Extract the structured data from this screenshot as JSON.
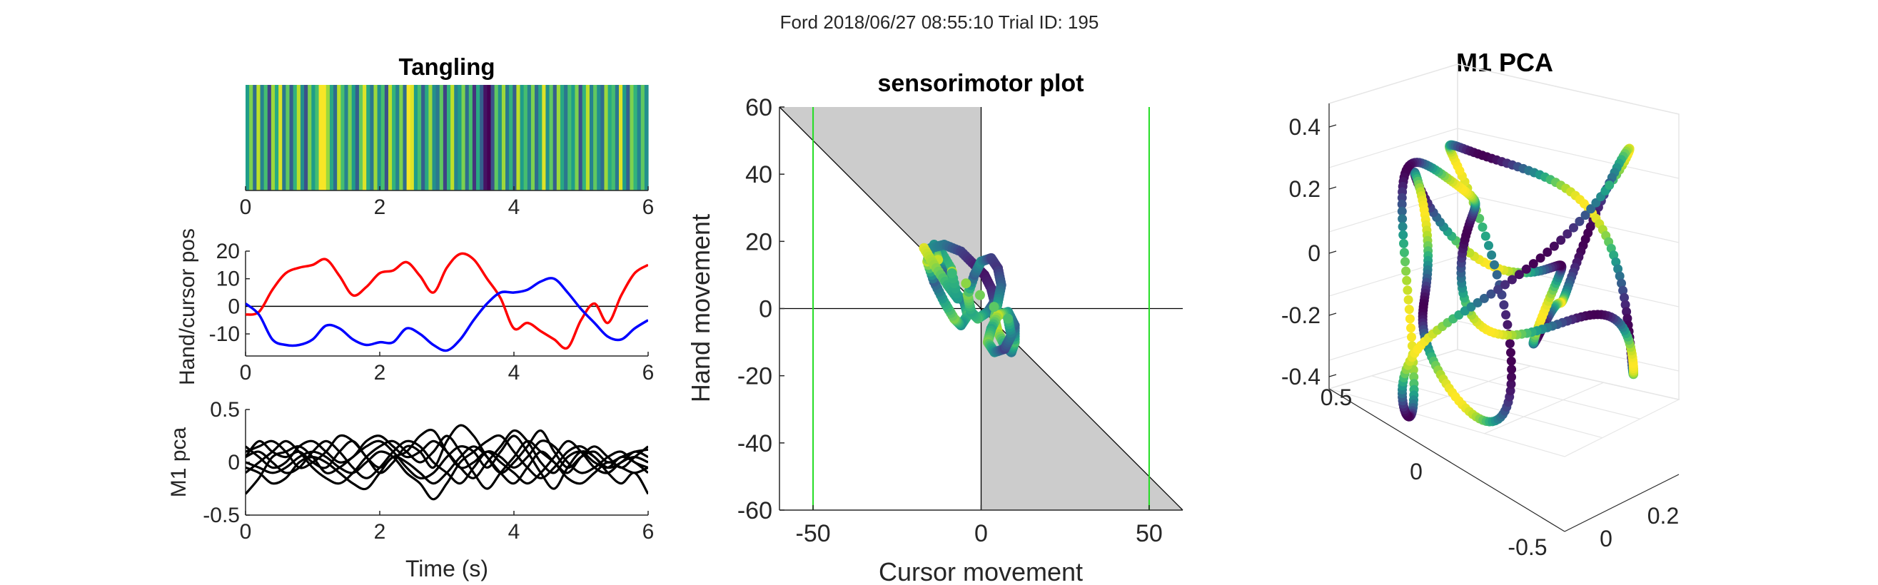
{
  "figure_title": "Ford 2018/06/27 08:55:10 Trial ID: 195",
  "chart_data": [
    {
      "id": "tangling",
      "type": "heatmap",
      "title": "Tangling",
      "xlabel": "",
      "ylabel": "",
      "xlim": [
        0,
        6
      ],
      "xticks": [
        "0",
        "2",
        "4",
        "6"
      ],
      "colormap": "viridis",
      "values": [
        0.55,
        0.8,
        0.35,
        0.9,
        0.45,
        0.7,
        0.2,
        0.85,
        0.6,
        0.95,
        0.4,
        0.75,
        0.3,
        0.65,
        0.9,
        0.5,
        0.25,
        0.8,
        0.55,
        0.7,
        0.99,
        0.99,
        0.85,
        0.6,
        0.35,
        0.9,
        0.7,
        0.45,
        0.8,
        0.55,
        0.3,
        0.75,
        0.95,
        0.6,
        0.4,
        0.85,
        0.5,
        0.7,
        0.25,
        0.9,
        0.65,
        0.45,
        0.8,
        0.35,
        0.99,
        0.95,
        0.55,
        0.7,
        0.3,
        0.6,
        0.85,
        0.5,
        0.4,
        0.75,
        0.2,
        0.65,
        0.9,
        0.45,
        0.55,
        0.8,
        0.35,
        0.7,
        0.15,
        0.6,
        0.3,
        0.05,
        0.0,
        0.25,
        0.75,
        0.5,
        0.85,
        0.4,
        0.65,
        0.3,
        0.9,
        0.55,
        0.7,
        0.45,
        0.8,
        0.35,
        0.6,
        0.95,
        0.5,
        0.75,
        0.3,
        0.85,
        0.6,
        0.4,
        0.7,
        0.55,
        0.8,
        0.25,
        0.65,
        0.9,
        0.45,
        0.75,
        0.5,
        0.35,
        0.85,
        0.6,
        0.7,
        0.4,
        0.95,
        0.55,
        0.3,
        0.8,
        0.65,
        0.45,
        0.75,
        0.5
      ]
    },
    {
      "id": "handcursor",
      "type": "line",
      "title": "",
      "xlabel": "",
      "ylabel": "Hand/cursor pos",
      "xlim": [
        0,
        6
      ],
      "ylim": [
        -18,
        20
      ],
      "xticks": [
        "0",
        "2",
        "4",
        "6"
      ],
      "yticks": [
        "-10",
        "0",
        "10",
        "20"
      ],
      "x": [
        0,
        0.2,
        0.4,
        0.6,
        0.8,
        1.0,
        1.2,
        1.4,
        1.6,
        1.8,
        2.0,
        2.2,
        2.4,
        2.6,
        2.8,
        3.0,
        3.2,
        3.4,
        3.6,
        3.8,
        4.0,
        4.2,
        4.4,
        4.6,
        4.8,
        5.0,
        5.2,
        5.4,
        5.6,
        5.8,
        6.0
      ],
      "series": [
        {
          "color": "#ff0000",
          "values": [
            -3,
            -2,
            6,
            12,
            14,
            15,
            17,
            11,
            4,
            7,
            12,
            13,
            16,
            11,
            5,
            14,
            19,
            17,
            10,
            3,
            -8,
            -6,
            -9,
            -12,
            -15,
            -5,
            1,
            -6,
            4,
            12,
            15
          ]
        },
        {
          "color": "#0000ff",
          "values": [
            1,
            -3,
            -12,
            -14,
            -14,
            -12,
            -7,
            -8,
            -12,
            -14,
            -13,
            -13,
            -8,
            -10,
            -14,
            -16,
            -12,
            -5,
            1,
            5,
            5,
            6,
            9,
            10,
            5,
            -1,
            -6,
            -11,
            -12,
            -8,
            -5
          ]
        }
      ],
      "reference_line": 0
    },
    {
      "id": "m1pca_time",
      "type": "line",
      "title": "",
      "xlabel": "Time (s)",
      "ylabel": "M1 pca",
      "xlim": [
        0,
        6
      ],
      "ylim": [
        -0.5,
        0.5
      ],
      "xticks": [
        "0",
        "2",
        "4",
        "6"
      ],
      "yticks": [
        "-0.5",
        "0",
        "0.5"
      ],
      "x": [
        0,
        0.2,
        0.4,
        0.6,
        0.8,
        1.0,
        1.2,
        1.4,
        1.6,
        1.8,
        2.0,
        2.2,
        2.4,
        2.6,
        2.8,
        3.0,
        3.2,
        3.4,
        3.6,
        3.8,
        4.0,
        4.2,
        4.4,
        4.6,
        4.8,
        5.0,
        5.2,
        5.4,
        5.6,
        5.8,
        6.0
      ],
      "series": [
        {
          "color": "#000000",
          "values": [
            0.1,
            0.15,
            0.2,
            0.1,
            -0.05,
            0.0,
            0.1,
            0.25,
            0.2,
            0.05,
            -0.1,
            0.0,
            0.15,
            0.1,
            -0.05,
            0.2,
            0.35,
            0.25,
            0.05,
            -0.1,
            0.0,
            0.15,
            0.3,
            0.1,
            -0.05,
            0.05,
            0.1,
            0.0,
            0.05,
            0.1,
            0.12
          ]
        },
        {
          "color": "#000000",
          "values": [
            -0.3,
            -0.15,
            0.05,
            0.1,
            0.15,
            0.05,
            -0.1,
            -0.05,
            0.05,
            0.15,
            0.2,
            0.1,
            -0.05,
            -0.15,
            -0.1,
            0.05,
            0.15,
            0.1,
            -0.05,
            0.1,
            0.25,
            0.1,
            -0.1,
            -0.25,
            -0.05,
            0.1,
            0.05,
            -0.1,
            -0.2,
            -0.1,
            -0.3
          ]
        },
        {
          "color": "#000000",
          "values": [
            0.0,
            -0.05,
            -0.1,
            -0.05,
            0.05,
            0.1,
            0.05,
            -0.05,
            -0.1,
            0.0,
            0.1,
            0.05,
            -0.1,
            -0.2,
            -0.35,
            -0.2,
            0.0,
            0.1,
            0.2,
            0.25,
            0.1,
            -0.05,
            -0.15,
            -0.05,
            0.1,
            0.15,
            0.05,
            -0.05,
            0.0,
            0.1,
            0.05
          ]
        },
        {
          "color": "#000000",
          "values": [
            0.05,
            0.1,
            0.0,
            -0.1,
            -0.05,
            0.1,
            0.2,
            0.1,
            -0.05,
            -0.15,
            -0.05,
            0.1,
            0.2,
            0.15,
            0.0,
            -0.1,
            -0.2,
            -0.05,
            0.1,
            0.05,
            -0.05,
            0.05,
            0.2,
            0.15,
            0.0,
            -0.1,
            -0.05,
            0.05,
            0.1,
            0.0,
            -0.05
          ]
        },
        {
          "color": "#000000",
          "values": [
            -0.1,
            0.0,
            0.1,
            0.2,
            0.1,
            -0.05,
            -0.15,
            -0.2,
            -0.1,
            0.05,
            0.15,
            0.2,
            0.1,
            0.0,
            0.1,
            0.25,
            0.1,
            -0.1,
            -0.25,
            -0.1,
            0.05,
            0.2,
            0.1,
            0.0,
            -0.1,
            0.05,
            0.15,
            0.05,
            -0.05,
            0.05,
            0.15
          ]
        },
        {
          "color": "#000000",
          "values": [
            0.15,
            0.05,
            -0.05,
            0.0,
            0.15,
            0.2,
            0.1,
            0.0,
            0.05,
            0.2,
            0.25,
            0.15,
            0.05,
            0.1,
            0.2,
            0.1,
            -0.05,
            -0.15,
            0.0,
            0.15,
            0.3,
            0.2,
            0.0,
            -0.1,
            0.05,
            0.1,
            0.0,
            -0.05,
            0.05,
            0.0,
            -0.1
          ]
        },
        {
          "color": "#000000",
          "values": [
            -0.05,
            -0.1,
            -0.2,
            -0.15,
            0.0,
            0.05,
            0.0,
            -0.1,
            -0.2,
            -0.25,
            -0.1,
            0.05,
            0.0,
            -0.1,
            -0.2,
            -0.1,
            0.05,
            0.15,
            0.05,
            -0.1,
            -0.2,
            -0.05,
            0.1,
            0.0,
            -0.15,
            -0.2,
            -0.1,
            0.0,
            -0.05,
            -0.1,
            -0.05
          ]
        },
        {
          "color": "#000000",
          "values": [
            0.05,
            0.2,
            0.1,
            0.05,
            0.1,
            0.0,
            -0.05,
            0.1,
            0.2,
            0.05,
            -0.05,
            0.05,
            0.1,
            0.25,
            0.3,
            0.1,
            -0.05,
            0.0,
            0.1,
            0.0,
            -0.1,
            -0.2,
            -0.1,
            0.05,
            0.2,
            0.1,
            -0.05,
            -0.1,
            0.0,
            0.05,
            0.0
          ]
        }
      ]
    },
    {
      "id": "sensorimotor",
      "type": "scatter",
      "title": "sensorimotor plot",
      "xlabel": "Cursor movement",
      "ylabel": "Hand movement",
      "xlim": [
        -60,
        60
      ],
      "ylim": [
        -60,
        60
      ],
      "xticks": [
        "-50",
        "0",
        "50"
      ],
      "yticks": [
        "-60",
        "-40",
        "-20",
        "0",
        "20",
        "40",
        "60"
      ],
      "vertical_lines": [
        -50,
        50
      ],
      "colormap": "viridis",
      "points": [
        [
          -9,
          12,
          0.7
        ],
        [
          -12,
          17,
          0.6
        ],
        [
          -14,
          19,
          0.5
        ],
        [
          -13,
          15,
          0.8
        ],
        [
          -11,
          10,
          0.3
        ],
        [
          -8,
          5,
          0.9
        ],
        [
          -5,
          2,
          0.4
        ],
        [
          -4,
          -2,
          0.7
        ],
        [
          -6,
          -5,
          0.5
        ],
        [
          -8,
          -3,
          0.8
        ],
        [
          -11,
          2,
          0.6
        ],
        [
          -14,
          8,
          0.3
        ],
        [
          -16,
          14,
          0.9
        ],
        [
          -15,
          18,
          0.5
        ],
        [
          -11,
          19,
          0.4
        ],
        [
          -6,
          17,
          0.2
        ],
        [
          -2,
          13,
          0.1
        ],
        [
          1,
          10,
          0.05
        ],
        [
          3,
          6,
          0.1
        ],
        [
          4,
          2,
          0.2
        ],
        [
          2,
          -1,
          0.4
        ],
        [
          -1,
          -3,
          0.7
        ],
        [
          -3,
          -1,
          0.6
        ],
        [
          -4,
          4,
          0.8
        ],
        [
          -2,
          10,
          0.3
        ],
        [
          0,
          14,
          0.5
        ],
        [
          3,
          15,
          0.2
        ],
        [
          5,
          12,
          0.15
        ],
        [
          6,
          7,
          0.3
        ],
        [
          5,
          2,
          0.5
        ],
        [
          4,
          -3,
          0.8
        ],
        [
          5,
          -7,
          0.9
        ],
        [
          7,
          -11,
          0.6
        ],
        [
          9,
          -13,
          0.4
        ],
        [
          10,
          -10,
          0.7
        ],
        [
          10,
          -5,
          0.3
        ],
        [
          8,
          -1,
          0.5
        ],
        [
          5,
          -2,
          0.9
        ],
        [
          3,
          -6,
          0.6
        ],
        [
          2,
          -10,
          0.8
        ],
        [
          4,
          -13,
          0.5
        ],
        [
          7,
          -12,
          0.2
        ],
        [
          9,
          -8,
          0.4
        ],
        [
          8,
          -3,
          0.7
        ],
        [
          -17,
          18,
          0.95
        ],
        [
          -14,
          13,
          0.85
        ],
        [
          -10,
          7,
          0.65
        ],
        [
          -7,
          3,
          0.55
        ]
      ]
    },
    {
      "id": "m1pca_3d",
      "type": "scatter",
      "title": "M1 PCA",
      "xlabel": "",
      "ylabel": "",
      "zticks": [
        "-0.4",
        "-0.2",
        "0",
        "0.2",
        "0.4"
      ],
      "xticks": [
        "-0.5",
        "0",
        "0.2"
      ],
      "yticks": [
        "0",
        "0.5"
      ],
      "colormap": "viridis"
    }
  ]
}
